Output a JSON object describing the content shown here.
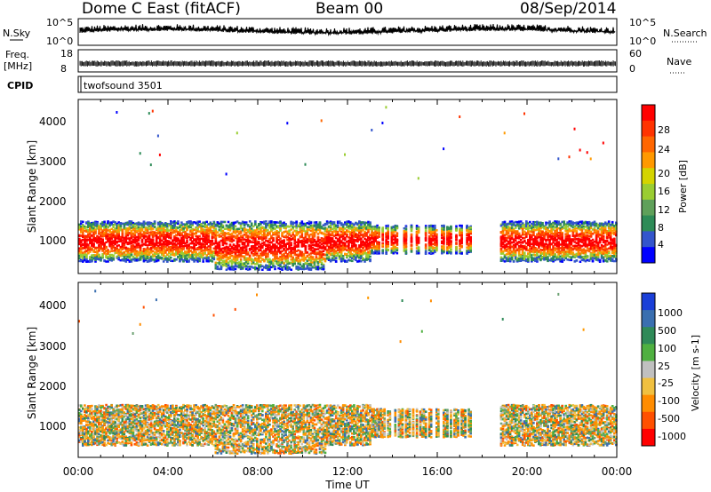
{
  "header": {
    "title": "Dome C East (fitACF)",
    "beam": "Beam 00",
    "date": "08/Sep/2014"
  },
  "top_panels": {
    "nsky_label": "N.Sky",
    "nsky_ticks": [
      "10^5",
      "10^0"
    ],
    "nsearch_label": "N.Search",
    "nsearch_ticks": [
      "10^5",
      "10^0"
    ],
    "freq_label": "Freq.",
    "freq_unit": "[MHz]",
    "freq_ticks": [
      "18",
      "8"
    ],
    "nave_label": "Nave",
    "nave_ticks": [
      "60",
      "0"
    ],
    "cpid_label": "CPID",
    "cpid_value": "twofsound 3501"
  },
  "chart_data": [
    {
      "type": "heatmap",
      "name": "power",
      "ylabel": "Slant Range [km]",
      "y_ticks": [
        1000,
        2000,
        3000,
        4000
      ],
      "ylim": [
        180,
        4500
      ],
      "xlim": [
        0,
        24
      ],
      "colorbar_label": "Power [dB]",
      "colorbar_ticks": [
        "4",
        "8",
        "12",
        "16",
        "20",
        "24",
        "28"
      ],
      "colorbar_colors": [
        "#0000ff",
        "#3355cc",
        "#2e8b57",
        "#5fa05a",
        "#9acd32",
        "#d4d400",
        "#ff9900",
        "#ff6600",
        "#ff3300",
        "#ff0000"
      ]
    },
    {
      "type": "heatmap",
      "name": "velocity",
      "ylabel": "Slant Range [km]",
      "y_ticks": [
        1000,
        2000,
        3000,
        4000
      ],
      "ylim": [
        180,
        4500
      ],
      "xlim": [
        0,
        24
      ],
      "colorbar_label": "Velocity [m s-1]",
      "colorbar_ticks": [
        "1000",
        "500",
        "100",
        "25",
        "-25",
        "-100",
        "-500",
        "-1000"
      ],
      "colorbar_colors": [
        "#1a3fd8",
        "#3a6fb0",
        "#2f8a58",
        "#4fb040",
        "#c0c0c0",
        "#f0c040",
        "#ff8c00",
        "#ff5000",
        "#ff0000"
      ]
    }
  ],
  "x_axis": {
    "ticks": [
      "00:00",
      "04:00",
      "08:00",
      "12:00",
      "16:00",
      "20:00",
      "00:00"
    ],
    "label": "Time UT"
  }
}
